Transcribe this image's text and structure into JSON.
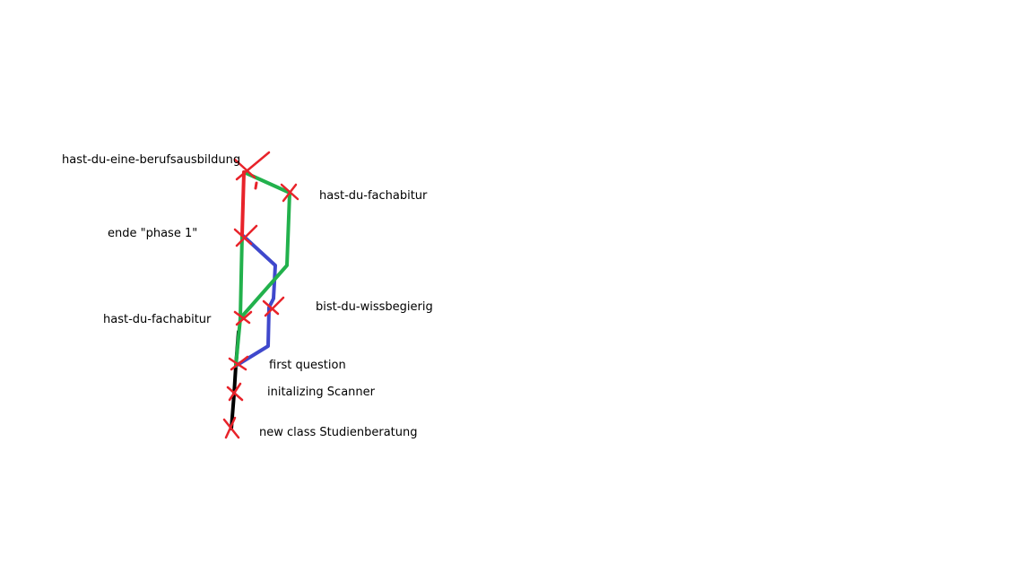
{
  "colors": {
    "background": "#ffffff",
    "red": "#e8232a",
    "green": "#22b14c",
    "blue": "#3f48cc",
    "black": "#000000",
    "marker": "#e8232a"
  },
  "labels": {
    "berufsausbildung": "hast-du-eine-berufsausbildung",
    "fachabitur_right": "hast-du-fachabitur",
    "ende_phase1": "ende \"phase 1\"",
    "fachabitur_left": "hast-du-fachabitur",
    "wissbegierig": "bist-du-wissbegierig",
    "first_question": "first question",
    "scanner": "initalizing Scanner",
    "new_class": "new class Studienberatung"
  }
}
